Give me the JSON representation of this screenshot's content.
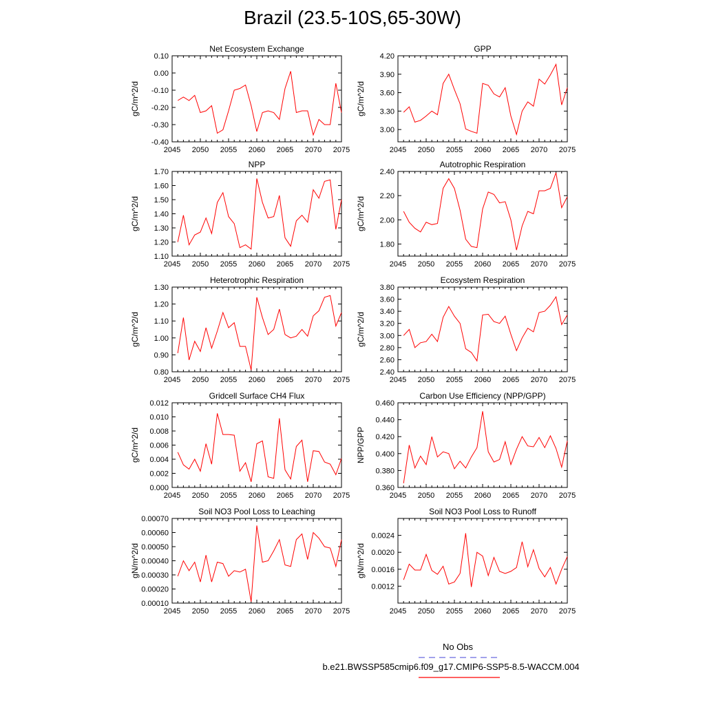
{
  "title": "Brazil (23.5-10S,65-30W)",
  "legend": {
    "obs_label": "No Obs",
    "obs_color": "#6a6adf",
    "case_label": "b.e21.BWSSP585cmip6.f09_g17.CMIP6-SSP5-8.5-WACCM.004",
    "case_color": "#ff0000"
  },
  "chart_data": [
    {
      "type": "line",
      "title": "Net Ecosystem Exchange",
      "ylabel": "gC/m^2/d",
      "xlim": [
        2045,
        2075
      ],
      "ylim": [
        -0.4,
        0.1
      ],
      "yticks": [
        -0.4,
        -0.3,
        -0.2,
        -0.1,
        0.0,
        0.1
      ],
      "ytick_labels": [
        "-0.40",
        "-0.30",
        "-0.20",
        "-0.10",
        "0.00",
        "0.10"
      ],
      "xticks": [
        2045,
        2050,
        2055,
        2060,
        2065,
        2070,
        2075
      ],
      "xtick_labels": [
        "2045",
        "2050",
        "2055",
        "2060",
        "2065",
        "2070",
        "2075"
      ],
      "x": [
        2046,
        2047,
        2048,
        2049,
        2050,
        2051,
        2052,
        2053,
        2054,
        2055,
        2056,
        2057,
        2058,
        2059,
        2060,
        2061,
        2062,
        2063,
        2064,
        2065,
        2066,
        2067,
        2068,
        2069,
        2070,
        2071,
        2072,
        2073,
        2074,
        2075
      ],
      "values": [
        -0.16,
        -0.14,
        -0.16,
        -0.13,
        -0.23,
        -0.22,
        -0.19,
        -0.35,
        -0.33,
        -0.22,
        -0.1,
        -0.09,
        -0.07,
        -0.19,
        -0.34,
        -0.23,
        -0.22,
        -0.23,
        -0.27,
        -0.09,
        0.01,
        -0.23,
        -0.22,
        -0.22,
        -0.36,
        -0.27,
        -0.3,
        -0.3,
        -0.06,
        -0.23
      ]
    },
    {
      "type": "line",
      "title": "GPP",
      "ylabel": "gC/m^2/d",
      "xlim": [
        2045,
        2075
      ],
      "ylim": [
        2.8,
        4.2
      ],
      "yticks": [
        3.0,
        3.3,
        3.6,
        3.9,
        4.2
      ],
      "ytick_labels": [
        "3.00",
        "3.30",
        "3.60",
        "3.90",
        "4.20"
      ],
      "xticks": [
        2045,
        2050,
        2055,
        2060,
        2065,
        2070,
        2075
      ],
      "xtick_labels": [
        "2045",
        "2050",
        "2055",
        "2060",
        "2065",
        "2070",
        "2075"
      ],
      "x": [
        2046,
        2047,
        2048,
        2049,
        2050,
        2051,
        2052,
        2053,
        2054,
        2055,
        2056,
        2057,
        2058,
        2059,
        2060,
        2061,
        2062,
        2063,
        2064,
        2065,
        2066,
        2067,
        2068,
        2069,
        2070,
        2071,
        2072,
        2073,
        2074,
        2075
      ],
      "values": [
        3.28,
        3.37,
        3.12,
        3.15,
        3.22,
        3.3,
        3.24,
        3.75,
        3.9,
        3.65,
        3.42,
        3.01,
        2.97,
        2.94,
        3.75,
        3.72,
        3.58,
        3.53,
        3.68,
        3.22,
        2.92,
        3.3,
        3.45,
        3.38,
        3.82,
        3.74,
        3.89,
        4.06,
        3.4,
        3.68
      ]
    },
    {
      "type": "line",
      "title": "NPP",
      "ylabel": "gC/m^2/d",
      "xlim": [
        2045,
        2075
      ],
      "ylim": [
        1.1,
        1.7
      ],
      "yticks": [
        1.1,
        1.2,
        1.3,
        1.4,
        1.5,
        1.6,
        1.7
      ],
      "ytick_labels": [
        "1.10",
        "1.20",
        "1.30",
        "1.40",
        "1.50",
        "1.60",
        "1.70"
      ],
      "xticks": [
        2045,
        2050,
        2055,
        2060,
        2065,
        2070,
        2075
      ],
      "xtick_labels": [
        "2045",
        "2050",
        "2055",
        "2060",
        "2065",
        "2070",
        "2075"
      ],
      "x": [
        2046,
        2047,
        2048,
        2049,
        2050,
        2051,
        2052,
        2053,
        2054,
        2055,
        2056,
        2057,
        2058,
        2059,
        2060,
        2061,
        2062,
        2063,
        2064,
        2065,
        2066,
        2067,
        2068,
        2069,
        2070,
        2071,
        2072,
        2073,
        2074,
        2075
      ],
      "values": [
        1.2,
        1.39,
        1.18,
        1.25,
        1.27,
        1.37,
        1.26,
        1.48,
        1.55,
        1.38,
        1.33,
        1.16,
        1.18,
        1.15,
        1.65,
        1.48,
        1.37,
        1.38,
        1.53,
        1.23,
        1.17,
        1.35,
        1.39,
        1.34,
        1.57,
        1.51,
        1.63,
        1.64,
        1.29,
        1.5
      ]
    },
    {
      "type": "line",
      "title": "Autotrophic Respiration",
      "ylabel": "gC/m^2/d",
      "xlim": [
        2045,
        2075
      ],
      "ylim": [
        1.7,
        2.4
      ],
      "yticks": [
        1.8,
        2.0,
        2.2,
        2.4
      ],
      "ytick_labels": [
        "1.80",
        "2.00",
        "2.20",
        "2.40"
      ],
      "xticks": [
        2045,
        2050,
        2055,
        2060,
        2065,
        2070,
        2075
      ],
      "xtick_labels": [
        "2045",
        "2050",
        "2055",
        "2060",
        "2065",
        "2070",
        "2075"
      ],
      "x": [
        2046,
        2047,
        2048,
        2049,
        2050,
        2051,
        2052,
        2053,
        2054,
        2055,
        2056,
        2057,
        2058,
        2059,
        2060,
        2061,
        2062,
        2063,
        2064,
        2065,
        2066,
        2067,
        2068,
        2069,
        2070,
        2071,
        2072,
        2073,
        2074,
        2075
      ],
      "values": [
        2.07,
        1.98,
        1.93,
        1.9,
        1.98,
        1.96,
        1.97,
        2.26,
        2.34,
        2.26,
        2.08,
        1.84,
        1.78,
        1.77,
        2.09,
        2.23,
        2.21,
        2.14,
        2.15,
        2.0,
        1.75,
        1.95,
        2.07,
        2.05,
        2.24,
        2.24,
        2.26,
        2.39,
        2.1,
        2.19
      ]
    },
    {
      "type": "line",
      "title": "Heterotrophic Respiration",
      "ylabel": "gC/m^2/d",
      "xlim": [
        2045,
        2075
      ],
      "ylim": [
        0.8,
        1.3
      ],
      "yticks": [
        0.8,
        0.9,
        1.0,
        1.1,
        1.2,
        1.3
      ],
      "ytick_labels": [
        "0.80",
        "0.90",
        "1.00",
        "1.10",
        "1.20",
        "1.30"
      ],
      "xticks": [
        2045,
        2050,
        2055,
        2060,
        2065,
        2070,
        2075
      ],
      "xtick_labels": [
        "2045",
        "2050",
        "2055",
        "2060",
        "2065",
        "2070",
        "2075"
      ],
      "x": [
        2046,
        2047,
        2048,
        2049,
        2050,
        2051,
        2052,
        2053,
        2054,
        2055,
        2056,
        2057,
        2058,
        2059,
        2060,
        2061,
        2062,
        2063,
        2064,
        2065,
        2066,
        2067,
        2068,
        2069,
        2070,
        2071,
        2072,
        2073,
        2074,
        2075
      ],
      "values": [
        0.91,
        1.12,
        0.87,
        0.98,
        0.92,
        1.06,
        0.94,
        1.04,
        1.15,
        1.06,
        1.09,
        0.95,
        0.95,
        0.81,
        1.24,
        1.12,
        1.02,
        1.05,
        1.17,
        1.02,
        1.0,
        1.01,
        1.05,
        1.01,
        1.13,
        1.16,
        1.24,
        1.25,
        1.07,
        1.15
      ]
    },
    {
      "type": "line",
      "title": "Ecosystem Respiration",
      "ylabel": "gC/m^2/d",
      "xlim": [
        2045,
        2075
      ],
      "ylim": [
        2.4,
        3.8
      ],
      "yticks": [
        2.4,
        2.6,
        2.8,
        3.0,
        3.2,
        3.4,
        3.6,
        3.8
      ],
      "ytick_labels": [
        "2.40",
        "2.60",
        "2.80",
        "3.00",
        "3.20",
        "3.40",
        "3.60",
        "3.80"
      ],
      "xticks": [
        2045,
        2050,
        2055,
        2060,
        2065,
        2070,
        2075
      ],
      "xtick_labels": [
        "2045",
        "2050",
        "2055",
        "2060",
        "2065",
        "2070",
        "2075"
      ],
      "x": [
        2046,
        2047,
        2048,
        2049,
        2050,
        2051,
        2052,
        2053,
        2054,
        2055,
        2056,
        2057,
        2058,
        2059,
        2060,
        2061,
        2062,
        2063,
        2064,
        2065,
        2066,
        2067,
        2068,
        2069,
        2070,
        2071,
        2072,
        2073,
        2074,
        2075
      ],
      "values": [
        3.0,
        3.1,
        2.8,
        2.88,
        2.9,
        3.02,
        2.9,
        3.3,
        3.48,
        3.32,
        3.2,
        2.78,
        2.72,
        2.58,
        3.34,
        3.35,
        3.23,
        3.2,
        3.32,
        3.02,
        2.75,
        2.96,
        3.12,
        3.06,
        3.38,
        3.4,
        3.5,
        3.64,
        3.18,
        3.34
      ]
    },
    {
      "type": "line",
      "title": "Gridcell Surface CH4 Flux",
      "ylabel": "gC/m^2/d",
      "xlim": [
        2045,
        2075
      ],
      "ylim": [
        0.0,
        0.012
      ],
      "yticks": [
        0.0,
        0.002,
        0.004,
        0.006,
        0.008,
        0.01,
        0.012
      ],
      "ytick_labels": [
        "0.000",
        "0.002",
        "0.004",
        "0.006",
        "0.008",
        "0.010",
        "0.012"
      ],
      "xticks": [
        2045,
        2050,
        2055,
        2060,
        2065,
        2070,
        2075
      ],
      "xtick_labels": [
        "2045",
        "2050",
        "2055",
        "2060",
        "2065",
        "2070",
        "2075"
      ],
      "x": [
        2046,
        2047,
        2048,
        2049,
        2050,
        2051,
        2052,
        2053,
        2054,
        2055,
        2056,
        2057,
        2058,
        2059,
        2060,
        2061,
        2062,
        2063,
        2064,
        2065,
        2066,
        2067,
        2068,
        2069,
        2070,
        2071,
        2072,
        2073,
        2074,
        2075
      ],
      "values": [
        0.005,
        0.0032,
        0.0026,
        0.004,
        0.0023,
        0.0062,
        0.0033,
        0.0105,
        0.0075,
        0.0075,
        0.0074,
        0.0023,
        0.0035,
        0.0008,
        0.0062,
        0.0066,
        0.0015,
        0.0013,
        0.0098,
        0.0025,
        0.0012,
        0.0058,
        0.0067,
        0.0008,
        0.0052,
        0.0051,
        0.0036,
        0.0033,
        0.0018,
        0.0041
      ]
    },
    {
      "type": "line",
      "title": "Carbon Use Efficiency (NPP/GPP)",
      "ylabel": "NPP/GPP",
      "xlim": [
        2045,
        2075
      ],
      "ylim": [
        0.36,
        0.46
      ],
      "yticks": [
        0.36,
        0.38,
        0.4,
        0.42,
        0.44,
        0.46
      ],
      "ytick_labels": [
        "0.360",
        "0.380",
        "0.400",
        "0.420",
        "0.440",
        "0.460"
      ],
      "xticks": [
        2045,
        2050,
        2055,
        2060,
        2065,
        2070,
        2075
      ],
      "xtick_labels": [
        "2045",
        "2050",
        "2055",
        "2060",
        "2065",
        "2070",
        "2075"
      ],
      "x": [
        2046,
        2047,
        2048,
        2049,
        2050,
        2051,
        2052,
        2053,
        2054,
        2055,
        2056,
        2057,
        2058,
        2059,
        2060,
        2061,
        2062,
        2063,
        2064,
        2065,
        2066,
        2067,
        2068,
        2069,
        2070,
        2071,
        2072,
        2073,
        2074,
        2075
      ],
      "values": [
        0.365,
        0.41,
        0.383,
        0.397,
        0.387,
        0.42,
        0.396,
        0.402,
        0.4,
        0.382,
        0.391,
        0.383,
        0.396,
        0.407,
        0.45,
        0.402,
        0.39,
        0.393,
        0.414,
        0.387,
        0.405,
        0.42,
        0.409,
        0.408,
        0.419,
        0.407,
        0.421,
        0.406,
        0.384,
        0.415
      ]
    },
    {
      "type": "line",
      "title": "Soil NO3 Pool Loss to Leaching",
      "ylabel": "gN/m^2/d",
      "xlim": [
        2045,
        2075
      ],
      "ylim": [
        0.0001,
        0.0007
      ],
      "yticks": [
        0.0001,
        0.0002,
        0.0003,
        0.0004,
        0.0005,
        0.0006,
        0.0007
      ],
      "ytick_labels": [
        "0.00010",
        "0.00020",
        "0.00030",
        "0.00040",
        "0.00050",
        "0.00060",
        "0.00070"
      ],
      "xticks": [
        2045,
        2050,
        2055,
        2060,
        2065,
        2070,
        2075
      ],
      "xtick_labels": [
        "2045",
        "2050",
        "2055",
        "2060",
        "2065",
        "2070",
        "2075"
      ],
      "x": [
        2046,
        2047,
        2048,
        2049,
        2050,
        2051,
        2052,
        2053,
        2054,
        2055,
        2056,
        2057,
        2058,
        2059,
        2060,
        2061,
        2062,
        2063,
        2064,
        2065,
        2066,
        2067,
        2068,
        2069,
        2070,
        2071,
        2072,
        2073,
        2074,
        2075
      ],
      "values": [
        0.00029,
        0.0004,
        0.00033,
        0.00039,
        0.00025,
        0.00044,
        0.00025,
        0.00039,
        0.00038,
        0.00029,
        0.00033,
        0.00032,
        0.00034,
        0.00011,
        0.00065,
        0.00039,
        0.0004,
        0.00047,
        0.00055,
        0.00037,
        0.00036,
        0.00055,
        0.00059,
        0.00041,
        0.0006,
        0.00056,
        0.0005,
        0.00049,
        0.00036,
        0.00055
      ]
    },
    {
      "type": "line",
      "title": "Soil NO3 Pool Loss to Runoff",
      "ylabel": "gN/m^2/d",
      "xlim": [
        2045,
        2075
      ],
      "ylim": [
        0.0008,
        0.0028
      ],
      "yticks": [
        0.0012,
        0.0016,
        0.002,
        0.0024
      ],
      "ytick_labels": [
        "0.0012",
        "0.0016",
        "0.0020",
        "0.0024"
      ],
      "xticks": [
        2045,
        2050,
        2055,
        2060,
        2065,
        2070,
        2075
      ],
      "xtick_labels": [
        "2045",
        "2050",
        "2055",
        "2060",
        "2065",
        "2070",
        "2075"
      ],
      "x": [
        2046,
        2047,
        2048,
        2049,
        2050,
        2051,
        2052,
        2053,
        2054,
        2055,
        2056,
        2057,
        2058,
        2059,
        2060,
        2061,
        2062,
        2063,
        2064,
        2065,
        2066,
        2067,
        2068,
        2069,
        2070,
        2071,
        2072,
        2073,
        2074,
        2075
      ],
      "values": [
        0.00135,
        0.00172,
        0.00158,
        0.00158,
        0.00195,
        0.00157,
        0.00148,
        0.00167,
        0.00125,
        0.0013,
        0.0015,
        0.00245,
        0.00118,
        0.002,
        0.00191,
        0.00145,
        0.00188,
        0.00155,
        0.0015,
        0.00155,
        0.00164,
        0.00225,
        0.00166,
        0.00206,
        0.00162,
        0.00142,
        0.00164,
        0.00125,
        0.0016,
        0.0019
      ]
    }
  ]
}
